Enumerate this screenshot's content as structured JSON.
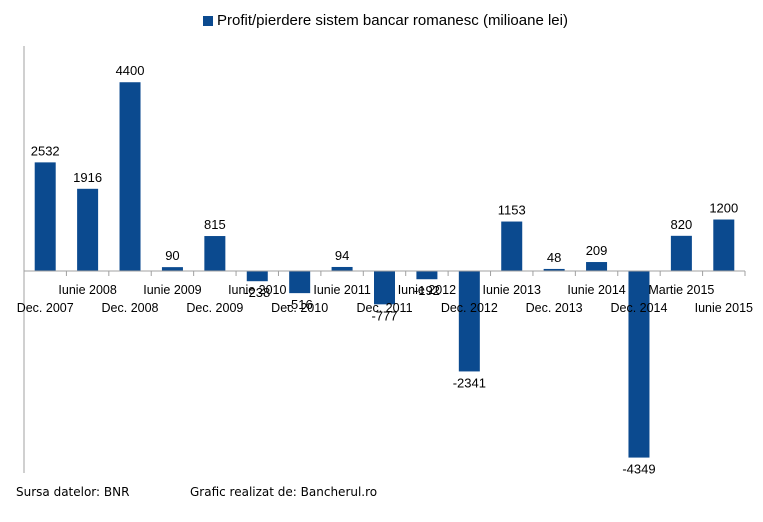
{
  "chart_data": {
    "type": "bar",
    "categories": [
      "Dec. 2007",
      "Iunie 2008",
      "Dec. 2008",
      "Iunie 2009",
      "Dec. 2009",
      "Iunie 2010",
      "Dec. 2010",
      "Iunie 2011",
      "Dec. 2011",
      "Iunie 2012",
      "Dec. 2012",
      "Iunie 2013",
      "Dec. 2013",
      "Iunie 2014",
      "Dec. 2014",
      "Martie 2015",
      "Iunie 2015"
    ],
    "series": [
      {
        "name": "Profit/pierdere sistem bancar romanesc (milioane lei)",
        "values": [
          2532,
          1916,
          4400,
          90,
          815,
          -238,
          -516,
          94,
          -777,
          -192,
          -2341,
          1153,
          48,
          209,
          -4349,
          820,
          1200
        ],
        "color": "#0b4a8f"
      }
    ],
    "ylim": [
      -4600,
      5000
    ],
    "grid": false,
    "legend_position": "top"
  },
  "footer": {
    "source": "Sursa datelor: BNR",
    "credit": "Grafic realizat de: Bancherul.ro"
  }
}
